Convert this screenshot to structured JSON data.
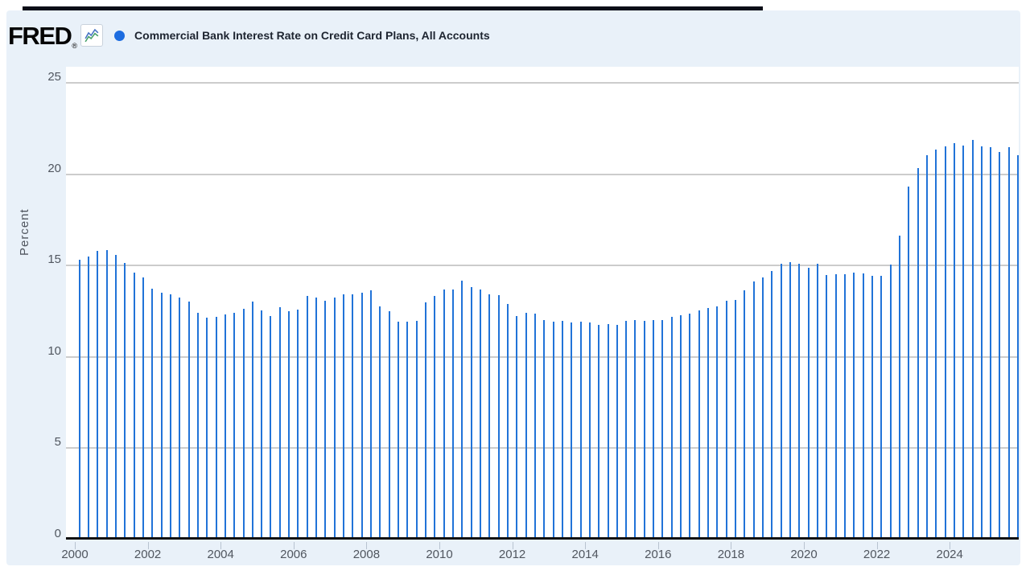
{
  "page": {
    "background": "#ffffff",
    "panel_background": "#e9f1f9",
    "top_bar_color": "#0b0e17"
  },
  "header": {
    "logo_text": "FRED",
    "registered_mark": "®",
    "chart_icon": "fred-sparkline-icon",
    "legend_marker_color": "#1c6ce0",
    "title": "Commercial Bank Interest Rate on Credit Card Plans, All Accounts"
  },
  "colors": {
    "bar": "#2173d8",
    "gridline": "#cccccc",
    "axis_line": "#111111",
    "tick_label": "#50565f",
    "icon_blue": "#4472c4",
    "icon_green": "#47a06a"
  },
  "chart_data": {
    "type": "bar",
    "title": "Commercial Bank Interest Rate on Credit Card Plans, All Accounts",
    "xlabel": "",
    "ylabel": "Percent",
    "y_ticks": [
      0,
      5,
      10,
      15,
      20,
      25
    ],
    "ylim": [
      0,
      25
    ],
    "x_ticks": [
      2000,
      2002,
      2004,
      2006,
      2008,
      2010,
      2012,
      2014,
      2016,
      2018,
      2020,
      2022,
      2024
    ],
    "grid": true,
    "legend_position": "top",
    "frequency": "Quarterly",
    "dates": [
      "2000-02",
      "2000-05",
      "2000-08",
      "2000-11",
      "2001-02",
      "2001-05",
      "2001-08",
      "2001-11",
      "2002-02",
      "2002-05",
      "2002-08",
      "2002-11",
      "2003-02",
      "2003-05",
      "2003-08",
      "2003-11",
      "2004-02",
      "2004-05",
      "2004-08",
      "2004-11",
      "2005-02",
      "2005-05",
      "2005-08",
      "2005-11",
      "2006-02",
      "2006-05",
      "2006-08",
      "2006-11",
      "2007-02",
      "2007-05",
      "2007-08",
      "2007-11",
      "2008-02",
      "2008-05",
      "2008-08",
      "2008-11",
      "2009-02",
      "2009-05",
      "2009-08",
      "2009-11",
      "2010-02",
      "2010-05",
      "2010-08",
      "2010-11",
      "2011-02",
      "2011-05",
      "2011-08",
      "2011-11",
      "2012-02",
      "2012-05",
      "2012-08",
      "2012-11",
      "2013-02",
      "2013-05",
      "2013-08",
      "2013-11",
      "2014-02",
      "2014-05",
      "2014-08",
      "2014-11",
      "2015-02",
      "2015-05",
      "2015-08",
      "2015-11",
      "2016-02",
      "2016-05",
      "2016-08",
      "2016-11",
      "2017-02",
      "2017-05",
      "2017-08",
      "2017-11",
      "2018-02",
      "2018-05",
      "2018-08",
      "2018-11",
      "2019-02",
      "2019-05",
      "2019-08",
      "2019-11",
      "2020-02",
      "2020-05",
      "2020-08",
      "2020-11",
      "2021-02",
      "2021-05",
      "2021-08",
      "2021-11",
      "2022-02",
      "2022-05",
      "2022-08",
      "2022-11",
      "2023-02",
      "2023-05",
      "2023-08",
      "2023-11",
      "2024-02",
      "2024-05",
      "2024-08",
      "2024-11",
      "2025-02",
      "2025-05",
      "2025-08",
      "2025-11"
    ],
    "values": [
      15.2,
      15.35,
      15.65,
      15.7,
      15.45,
      15.0,
      14.5,
      14.2,
      13.6,
      13.4,
      13.3,
      13.1,
      12.9,
      12.3,
      12.0,
      12.05,
      12.2,
      12.3,
      12.5,
      12.9,
      12.4,
      12.1,
      12.6,
      12.35,
      12.45,
      13.2,
      13.1,
      12.95,
      13.1,
      13.3,
      13.3,
      13.4,
      13.5,
      12.65,
      12.35,
      11.8,
      11.8,
      11.85,
      12.85,
      13.2,
      13.55,
      13.55,
      14.05,
      13.7,
      13.55,
      13.3,
      13.25,
      12.75,
      12.1,
      12.3,
      12.25,
      11.9,
      11.8,
      11.85,
      11.75,
      11.8,
      11.75,
      11.6,
      11.65,
      11.6,
      11.85,
      11.9,
      11.85,
      11.9,
      11.9,
      12.05,
      12.15,
      12.25,
      12.4,
      12.55,
      12.65,
      12.95,
      13.0,
      13.5,
      14.0,
      14.2,
      14.55,
      14.95,
      15.05,
      14.95,
      14.75,
      14.95,
      14.35,
      14.4,
      14.4,
      14.5,
      14.45,
      14.3,
      14.3,
      14.9,
      16.5,
      19.2,
      20.2,
      20.9,
      21.2,
      21.4,
      21.55,
      21.45,
      21.75,
      21.4,
      21.35,
      21.1,
      21.35,
      20.9
    ]
  }
}
